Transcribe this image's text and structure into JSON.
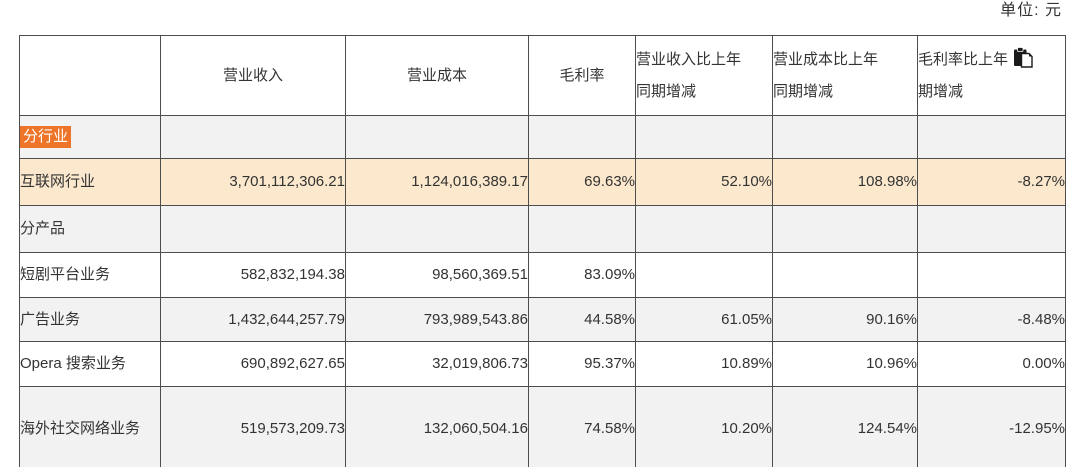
{
  "unit_label": "单位: 元",
  "colors": {
    "label_highlight": "#ed7428",
    "highlight_row_bg": "#fce9cd",
    "alt_row_bg": "#f2f2f2",
    "border": "#4d4d4d",
    "text": "#333333"
  },
  "icons": {
    "paste_icon": "clipboard-paste-icon"
  },
  "table": {
    "headers": [
      {
        "lines": [
          ""
        ],
        "align": "center"
      },
      {
        "lines": [
          "营业收入"
        ],
        "align": "center"
      },
      {
        "lines": [
          "营业成本"
        ],
        "align": "center"
      },
      {
        "lines": [
          "毛利率"
        ],
        "align": "center"
      },
      {
        "lines": [
          "营业收入比上年",
          "同期增减"
        ],
        "align": "left"
      },
      {
        "lines": [
          "营业成本比上年",
          "同期增减"
        ],
        "align": "left"
      },
      {
        "lines": [
          "毛利率比上年",
          "期增减"
        ],
        "align": "left",
        "icon_after_line": 0
      }
    ],
    "rows": [
      {
        "label": "分行业",
        "label_highlighted": true,
        "bg": "gray",
        "cells": [
          "",
          "",
          "",
          "",
          "",
          ""
        ]
      },
      {
        "label": "互联网行业",
        "label_highlighted": false,
        "bg": "cream",
        "cells": [
          "3,701,112,306.21",
          "1,124,016,389.17",
          "69.63%",
          "52.10%",
          "108.98%",
          "-8.27%"
        ]
      },
      {
        "label": "分产品",
        "label_highlighted": false,
        "bg": "gray",
        "cells": [
          "",
          "",
          "",
          "",
          "",
          ""
        ]
      },
      {
        "label": "短剧平台业务",
        "label_highlighted": false,
        "bg": "white",
        "cells": [
          "582,832,194.38",
          "98,560,369.51",
          "83.09%",
          "",
          "",
          ""
        ]
      },
      {
        "label": "广告业务",
        "label_highlighted": false,
        "bg": "gray",
        "cells": [
          "1,432,644,257.79",
          "793,989,543.86",
          "44.58%",
          "61.05%",
          "90.16%",
          "-8.48%"
        ]
      },
      {
        "label": "Opera 搜索业务",
        "label_highlighted": false,
        "bg": "white",
        "cells": [
          "690,892,627.65",
          "32,019,806.73",
          "95.37%",
          "10.89%",
          "10.96%",
          "0.00%"
        ]
      },
      {
        "label": "海外社交网络业务",
        "label_highlighted": false,
        "bg": "gray",
        "cells": [
          "519,573,209.73",
          "132,060,504.16",
          "74.58%",
          "10.20%",
          "124.54%",
          "-12.95%"
        ]
      }
    ]
  }
}
